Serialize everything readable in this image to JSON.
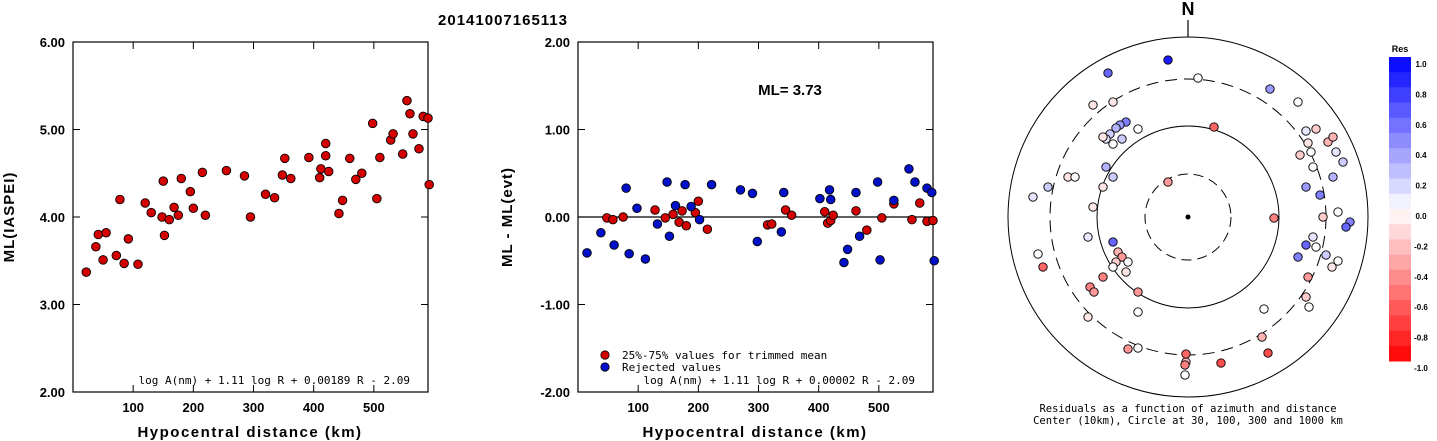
{
  "title": "20141007165113",
  "chart_data": [
    {
      "type": "scatter",
      "xlabel": "Hypocentral distance (km)",
      "ylabel": "ML(IASPEI)",
      "xlim": [
        0,
        590
      ],
      "ylim": [
        2.0,
        6.0
      ],
      "xticks": [
        "100",
        "200",
        "300",
        "400",
        "500"
      ],
      "yticks": [
        "2.00",
        "3.00",
        "4.00",
        "5.00",
        "6.00"
      ],
      "formula": "log A(nm) + 1.11 log R + 0.00189 R - 2.09",
      "point_color": "#d40000",
      "points": [
        [
          22,
          3.37
        ],
        [
          38,
          3.66
        ],
        [
          42,
          3.8
        ],
        [
          50,
          3.51
        ],
        [
          55,
          3.82
        ],
        [
          72,
          3.56
        ],
        [
          78,
          4.2
        ],
        [
          85,
          3.47
        ],
        [
          92,
          3.75
        ],
        [
          108,
          3.46
        ],
        [
          120,
          4.16
        ],
        [
          130,
          4.05
        ],
        [
          148,
          4.0
        ],
        [
          150,
          4.41
        ],
        [
          152,
          3.79
        ],
        [
          160,
          3.97
        ],
        [
          168,
          4.11
        ],
        [
          175,
          4.02
        ],
        [
          180,
          4.44
        ],
        [
          195,
          4.29
        ],
        [
          200,
          4.1
        ],
        [
          215,
          4.51
        ],
        [
          220,
          4.02
        ],
        [
          255,
          4.53
        ],
        [
          285,
          4.47
        ],
        [
          295,
          4.0
        ],
        [
          320,
          4.26
        ],
        [
          335,
          4.22
        ],
        [
          348,
          4.48
        ],
        [
          352,
          4.67
        ],
        [
          362,
          4.44
        ],
        [
          392,
          4.68
        ],
        [
          410,
          4.45
        ],
        [
          412,
          4.55
        ],
        [
          420,
          4.7
        ],
        [
          420,
          4.84
        ],
        [
          425,
          4.52
        ],
        [
          442,
          4.04
        ],
        [
          448,
          4.19
        ],
        [
          460,
          4.67
        ],
        [
          470,
          4.43
        ],
        [
          480,
          4.5
        ],
        [
          498,
          5.07
        ],
        [
          505,
          4.21
        ],
        [
          510,
          4.68
        ],
        [
          528,
          4.88
        ],
        [
          532,
          4.95
        ],
        [
          548,
          4.72
        ],
        [
          555,
          5.33
        ],
        [
          560,
          5.18
        ],
        [
          565,
          4.95
        ],
        [
          575,
          4.78
        ],
        [
          582,
          5.15
        ],
        [
          590,
          5.13
        ],
        [
          592,
          4.37
        ]
      ]
    },
    {
      "type": "scatter",
      "xlabel": "Hypocentral distance (km)",
      "ylabel": "ML - ML(evt)",
      "xlim": [
        0,
        590
      ],
      "ylim": [
        -2.0,
        2.0
      ],
      "xticks": [
        "100",
        "200",
        "300",
        "400",
        "500"
      ],
      "yticks": [
        "-2.00",
        "-1.00",
        "0.00",
        "1.00",
        "2.00"
      ],
      "annotation": "ML= 3.73",
      "formula": "log A(nm) + 1.11 log R + 0.00002 R - 2.09",
      "legend": [
        {
          "label": "25%-75% values for trimmed mean",
          "color": "#d40000"
        },
        {
          "label": "Rejected values",
          "color": "#0010c8"
        }
      ],
      "series": [
        {
          "name": "25%-75% values for trimmed mean",
          "color": "#d40000",
          "points": [
            [
              48,
              -0.01
            ],
            [
              58,
              -0.03
            ],
            [
              75,
              0.0
            ],
            [
              128,
              0.08
            ],
            [
              145,
              -0.01
            ],
            [
              158,
              0.03
            ],
            [
              168,
              -0.06
            ],
            [
              173,
              0.07
            ],
            [
              180,
              -0.1
            ],
            [
              195,
              0.05
            ],
            [
              200,
              0.18
            ],
            [
              215,
              -0.14
            ],
            [
              315,
              -0.09
            ],
            [
              322,
              -0.08
            ],
            [
              345,
              0.08
            ],
            [
              355,
              0.02
            ],
            [
              410,
              0.06
            ],
            [
              415,
              -0.07
            ],
            [
              420,
              -0.04
            ],
            [
              424,
              0.02
            ],
            [
              462,
              0.07
            ],
            [
              480,
              -0.15
            ],
            [
              505,
              -0.01
            ],
            [
              525,
              0.15
            ],
            [
              555,
              -0.03
            ],
            [
              568,
              0.16
            ],
            [
              580,
              -0.05
            ],
            [
              590,
              -0.04
            ]
          ]
        },
        {
          "name": "Rejected values",
          "color": "#0010c8",
          "points": [
            [
              15,
              -0.41
            ],
            [
              38,
              -0.18
            ],
            [
              60,
              -0.32
            ],
            [
              80,
              0.33
            ],
            [
              85,
              -0.42
            ],
            [
              98,
              0.1
            ],
            [
              112,
              -0.48
            ],
            [
              132,
              -0.08
            ],
            [
              148,
              0.4
            ],
            [
              152,
              -0.22
            ],
            [
              162,
              0.13
            ],
            [
              178,
              0.37
            ],
            [
              188,
              0.12
            ],
            [
              202,
              -0.03
            ],
            [
              222,
              0.37
            ],
            [
              270,
              0.31
            ],
            [
              290,
              0.27
            ],
            [
              298,
              -0.28
            ],
            [
              338,
              -0.17
            ],
            [
              342,
              0.28
            ],
            [
              402,
              0.21
            ],
            [
              418,
              0.31
            ],
            [
              420,
              0.2
            ],
            [
              442,
              -0.52
            ],
            [
              448,
              -0.37
            ],
            [
              462,
              0.28
            ],
            [
              468,
              -0.22
            ],
            [
              498,
              0.4
            ],
            [
              502,
              -0.49
            ],
            [
              525,
              0.19
            ],
            [
              550,
              0.55
            ],
            [
              560,
              0.4
            ],
            [
              580,
              0.33
            ],
            [
              588,
              0.28
            ],
            [
              592,
              -0.5
            ]
          ]
        }
      ]
    },
    {
      "type": "scatter",
      "subtype": "polar",
      "north_label": "N",
      "caption_line1": "Residuals as a function of azimuth and distance",
      "caption_line2": "Center (10km), Circle at 30, 100, 300 and 1000 km",
      "colorbar_title": "Res",
      "colorbar_ticks": [
        "1.0",
        "0.8",
        "0.6",
        "0.4",
        "0.2",
        "0.0",
        "-0.2",
        "-0.4",
        "-0.6",
        "-0.8",
        "-1.0"
      ],
      "points": [
        {
          "dx": -20,
          "dy": -35,
          "res": -0.4
        },
        {
          "dx": 86,
          "dy": 1,
          "res": -0.5
        },
        {
          "dx": -20,
          "dy": -157,
          "res": 0.9
        },
        {
          "dx": 10,
          "dy": -139,
          "res": 0.0
        },
        {
          "dx": -80,
          "dy": -144,
          "res": 0.6
        },
        {
          "dx": -95,
          "dy": -112,
          "res": -0.1
        },
        {
          "dx": -75,
          "dy": -115,
          "res": -0.1
        },
        {
          "dx": -62,
          "dy": -95,
          "res": 0.5
        },
        {
          "dx": -68,
          "dy": -92,
          "res": 0.4
        },
        {
          "dx": -72,
          "dy": -89,
          "res": 0.3
        },
        {
          "dx": -78,
          "dy": -83,
          "res": 0.2
        },
        {
          "dx": -82,
          "dy": -78,
          "res": 0.1
        },
        {
          "dx": -75,
          "dy": -73,
          "res": 0.0
        },
        {
          "dx": -85,
          "dy": -80,
          "res": -0.1
        },
        {
          "dx": -50,
          "dy": -88,
          "res": 0.0
        },
        {
          "dx": -82,
          "dy": -50,
          "res": 0.3
        },
        {
          "dx": -75,
          "dy": -40,
          "res": 0.2
        },
        {
          "dx": -85,
          "dy": -30,
          "res": -0.1
        },
        {
          "dx": -95,
          "dy": -10,
          "res": -0.1
        },
        {
          "dx": -120,
          "dy": -40,
          "res": -0.1
        },
        {
          "dx": -100,
          "dy": 20,
          "res": 0.1
        },
        {
          "dx": -140,
          "dy": -30,
          "res": 0.2
        },
        {
          "dx": -155,
          "dy": -20,
          "res": 0.1
        },
        {
          "dx": 26,
          "dy": -90,
          "res": -0.6
        },
        {
          "dx": -75,
          "dy": 25,
          "res": 0.6
        },
        {
          "dx": -70,
          "dy": 35,
          "res": -0.3
        },
        {
          "dx": -66,
          "dy": 40,
          "res": -0.4
        },
        {
          "dx": -72,
          "dy": 45,
          "res": -0.2
        },
        {
          "dx": -75,
          "dy": 50,
          "res": 0.0
        },
        {
          "dx": -62,
          "dy": 55,
          "res": -0.1
        },
        {
          "dx": -60,
          "dy": 45,
          "res": 0.0
        },
        {
          "dx": -85,
          "dy": 60,
          "res": -0.5
        },
        {
          "dx": -98,
          "dy": 70,
          "res": -0.5
        },
        {
          "dx": -94,
          "dy": 75,
          "res": -0.4
        },
        {
          "dx": -50,
          "dy": 75,
          "res": -0.4
        },
        {
          "dx": -145,
          "dy": 50,
          "res": -0.6
        },
        {
          "dx": -150,
          "dy": 37,
          "res": 0.0
        },
        {
          "dx": -100,
          "dy": 100,
          "res": -0.1
        },
        {
          "dx": -50,
          "dy": 95,
          "res": 0.0
        },
        {
          "dx": -60,
          "dy": 132,
          "res": -0.4
        },
        {
          "dx": -50,
          "dy": 131,
          "res": 0.0
        },
        {
          "dx": -2,
          "dy": 145,
          "res": -0.3
        },
        {
          "dx": -3,
          "dy": 158,
          "res": 0.0
        },
        {
          "dx": -3,
          "dy": 148,
          "res": -0.5
        },
        {
          "dx": -2,
          "dy": 137,
          "res": -0.6
        },
        {
          "dx": 33,
          "dy": 146,
          "res": -0.7
        },
        {
          "dx": 74,
          "dy": 120,
          "res": -0.3
        },
        {
          "dx": 80,
          "dy": 136,
          "res": -0.7
        },
        {
          "dx": 76,
          "dy": 92,
          "res": 0.0
        },
        {
          "dx": 121,
          "dy": 90,
          "res": 0.0
        },
        {
          "dx": 118,
          "dy": 80,
          "res": -0.2
        },
        {
          "dx": 120,
          "dy": 60,
          "res": -0.4
        },
        {
          "dx": 110,
          "dy": 40,
          "res": 0.5
        },
        {
          "dx": 128,
          "dy": 30,
          "res": 0.0
        },
        {
          "dx": 138,
          "dy": 38,
          "res": 0.2
        },
        {
          "dx": 150,
          "dy": 44,
          "res": 0.0
        },
        {
          "dx": 144,
          "dy": 50,
          "res": -0.1
        },
        {
          "dx": 118,
          "dy": 28,
          "res": 0.6
        },
        {
          "dx": 125,
          "dy": 20,
          "res": 0.1
        },
        {
          "dx": 135,
          "dy": 0,
          "res": -0.2
        },
        {
          "dx": 150,
          "dy": -5,
          "res": 0.0
        },
        {
          "dx": 162,
          "dy": 5,
          "res": 0.5
        },
        {
          "dx": 158,
          "dy": 10,
          "res": 0.6
        },
        {
          "dx": 132,
          "dy": -22,
          "res": 0.5
        },
        {
          "dx": 118,
          "dy": -30,
          "res": 0.4
        },
        {
          "dx": 145,
          "dy": -40,
          "res": 0.3
        },
        {
          "dx": 155,
          "dy": -55,
          "res": 0.2
        },
        {
          "dx": 148,
          "dy": -65,
          "res": 0.1
        },
        {
          "dx": 125,
          "dy": -50,
          "res": 0.0
        },
        {
          "dx": 140,
          "dy": -75,
          "res": -0.3
        },
        {
          "dx": 145,
          "dy": -80,
          "res": -0.3
        },
        {
          "dx": 120,
          "dy": -74,
          "res": -0.1
        },
        {
          "dx": 128,
          "dy": -88,
          "res": -0.2
        },
        {
          "dx": 118,
          "dy": -86,
          "res": 0.1
        },
        {
          "dx": 110,
          "dy": -115,
          "res": 0.0
        },
        {
          "dx": 82,
          "dy": -128,
          "res": 0.4
        },
        {
          "dx": 112,
          "dy": -62,
          "res": -0.2
        },
        {
          "dx": 123,
          "dy": -65,
          "res": 0.0
        },
        {
          "dx": -113,
          "dy": -40,
          "res": 0.0
        },
        {
          "dx": -66,
          "dy": -78,
          "res": 0.2
        }
      ]
    }
  ]
}
